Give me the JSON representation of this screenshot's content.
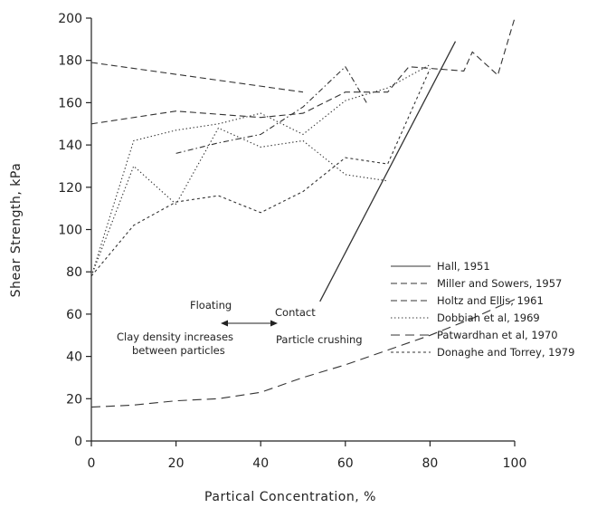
{
  "chart_data": {
    "type": "line",
    "xlabel": "Partical Concentration, %",
    "ylabel": "Shear Strength, kPa",
    "xlim": [
      0,
      100
    ],
    "ylim": [
      0,
      200
    ],
    "xticks": [
      "0",
      "20",
      "40",
      "60",
      "80",
      "100"
    ],
    "yticks": [
      "0",
      "20",
      "40",
      "60",
      "80",
      "100",
      "120",
      "140",
      "160",
      "180",
      "200"
    ],
    "grid": false,
    "legend_position": "right",
    "series": [
      {
        "name": "Hall, 1951",
        "style": "solid",
        "x": [
          54,
          86
        ],
        "y": [
          66,
          189
        ]
      },
      {
        "name": "Miller and Sowers, 1957",
        "style": "dashed",
        "x": [
          0,
          50
        ],
        "y": [
          179,
          165
        ]
      },
      {
        "name": "Holtz and Ellis, 1961",
        "style": "dashed",
        "x": [
          0,
          20,
          40,
          50,
          60,
          70,
          75,
          88,
          90,
          96,
          100
        ],
        "y": [
          150,
          156,
          153,
          155,
          165,
          165,
          177,
          175,
          184,
          173,
          200
        ]
      },
      {
        "name": "Dobbiah et al, 1969",
        "style": "dotted",
        "x": [
          0,
          10,
          20,
          30,
          40,
          50,
          60,
          70
        ],
        "y": [
          78,
          130,
          112,
          148,
          139,
          142,
          126,
          123
        ]
      },
      {
        "name": "Patwardhan et al, 1970",
        "style": "longdash",
        "x": [
          0,
          10,
          20,
          30,
          40,
          50,
          60,
          70,
          80,
          90,
          100
        ],
        "y": [
          16,
          17,
          19,
          20,
          23,
          30,
          36,
          43,
          50,
          58,
          67
        ]
      },
      {
        "name": "Donaghe and Torrey, 1979",
        "style": "shortdash",
        "x": [
          0,
          10,
          20,
          30,
          40,
          50,
          60,
          70,
          80
        ],
        "y": [
          78,
          102,
          113,
          116,
          108,
          118,
          134,
          131,
          176
        ]
      },
      {
        "name": "",
        "style": "dotted",
        "x": [
          0,
          10,
          20,
          30,
          40,
          50,
          60,
          65,
          70,
          80
        ],
        "y": [
          78,
          142,
          147,
          150,
          155,
          145,
          161,
          164,
          167,
          178
        ]
      },
      {
        "name": "",
        "style": "dashdot",
        "x": [
          20,
          30,
          40,
          50,
          60,
          65
        ],
        "y": [
          136,
          141,
          145,
          158,
          177,
          160
        ]
      }
    ],
    "annotations": {
      "floating": "Floating",
      "contact": "Contact",
      "clay_line1": "Clay density increases",
      "clay_line2": "between particles",
      "crushing": "Particle crushing"
    }
  }
}
